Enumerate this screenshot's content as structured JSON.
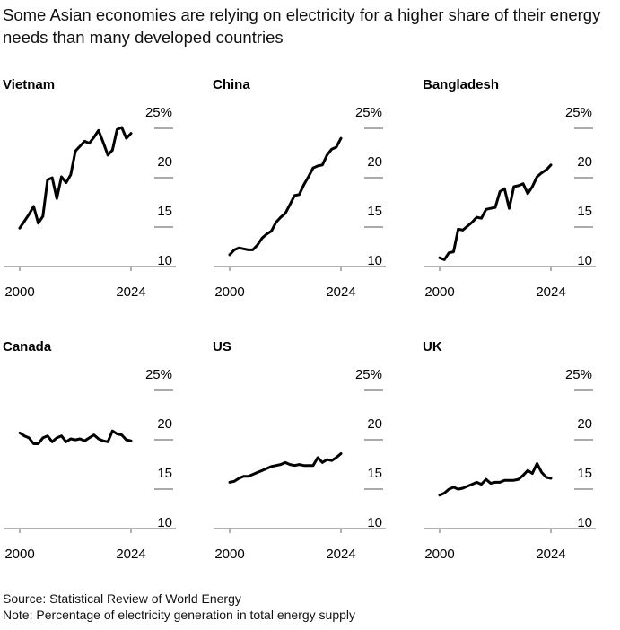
{
  "title": "Some Asian economies are relying on electricity for a higher share of their energy needs than many developed countries",
  "footer": {
    "source": "Source: Statistical Review of World Energy",
    "note": "Note: Percentage of electricity generation in total energy supply"
  },
  "chart_data": [
    {
      "type": "line",
      "title": "Vietnam",
      "ylim": [
        10,
        26
      ],
      "y_ticks": [
        10,
        15,
        20,
        25
      ],
      "y_tick_labels": [
        "10",
        "15",
        "20",
        "25%"
      ],
      "x_tick_labels": [
        "2000",
        "2024"
      ],
      "x": [
        2000,
        2001,
        2002,
        2003,
        2004,
        2005,
        2006,
        2007,
        2008,
        2009,
        2010,
        2011,
        2012,
        2013,
        2014,
        2015,
        2016,
        2017,
        2018,
        2019,
        2020,
        2021,
        2022,
        2023,
        2024
      ],
      "values": [
        13.8,
        14.5,
        15.2,
        16,
        14.3,
        15,
        18.7,
        18.9,
        16.8,
        19,
        18.4,
        19.2,
        21.6,
        22.1,
        22.6,
        22.4,
        23,
        23.7,
        22.5,
        21.2,
        21.7,
        23.8,
        24,
        22.9,
        23.4
      ]
    },
    {
      "type": "line",
      "title": "China",
      "ylim": [
        10,
        26
      ],
      "y_ticks": [
        10,
        15,
        20,
        25
      ],
      "y_tick_labels": [
        "10",
        "15",
        "20",
        "25%"
      ],
      "x_tick_labels": [
        "2000",
        "2024"
      ],
      "x": [
        2000,
        2001,
        2002,
        2003,
        2004,
        2005,
        2006,
        2007,
        2008,
        2009,
        2010,
        2011,
        2012,
        2013,
        2014,
        2015,
        2016,
        2017,
        2018,
        2019,
        2020,
        2021,
        2022,
        2023,
        2024
      ],
      "values": [
        11.1,
        11.6,
        11.8,
        11.7,
        11.6,
        11.6,
        12.1,
        12.8,
        13.2,
        13.5,
        14.4,
        14.9,
        15.3,
        16.2,
        17.1,
        17.2,
        18.2,
        19,
        19.9,
        20.1,
        20.2,
        21.2,
        21.8,
        22,
        22.9
      ]
    },
    {
      "type": "line",
      "title": "Bangladesh",
      "ylim": [
        10,
        26
      ],
      "y_ticks": [
        10,
        15,
        20,
        25
      ],
      "y_tick_labels": [
        "10",
        "15",
        "20",
        "25%"
      ],
      "x_tick_labels": [
        "2000",
        "2024"
      ],
      "x": [
        2000,
        2001,
        2002,
        2003,
        2004,
        2005,
        2006,
        2007,
        2008,
        2009,
        2010,
        2011,
        2012,
        2013,
        2014,
        2015,
        2016,
        2017,
        2018,
        2019,
        2020,
        2021,
        2022,
        2023,
        2024
      ],
      "values": [
        10.8,
        10.6,
        11.3,
        11.4,
        13.7,
        13.6,
        14,
        14.4,
        14.9,
        14.8,
        15.7,
        15.8,
        15.9,
        17.5,
        17.8,
        15.8,
        18,
        18.1,
        18.3,
        17.3,
        18,
        19,
        19.4,
        19.7,
        20.2
      ]
    },
    {
      "type": "line",
      "title": "Canada",
      "ylim": [
        10,
        26
      ],
      "y_ticks": [
        10,
        15,
        20,
        25
      ],
      "y_tick_labels": [
        "10",
        "15",
        "20",
        "25%"
      ],
      "x_tick_labels": [
        "2000",
        "2024"
      ],
      "x": [
        2000,
        2001,
        2002,
        2003,
        2004,
        2005,
        2006,
        2007,
        2008,
        2009,
        2010,
        2011,
        2012,
        2013,
        2014,
        2015,
        2016,
        2017,
        2018,
        2019,
        2020,
        2021,
        2022,
        2023,
        2024
      ],
      "values": [
        19.6,
        19.3,
        19.1,
        18.5,
        18.5,
        19.1,
        19.3,
        18.7,
        19.1,
        19.3,
        18.7,
        19,
        18.9,
        19,
        18.8,
        19.1,
        19.4,
        19,
        18.8,
        18.7,
        19.8,
        19.5,
        19.4,
        18.9,
        18.8
      ]
    },
    {
      "type": "line",
      "title": "US",
      "ylim": [
        10,
        26
      ],
      "y_ticks": [
        10,
        15,
        20,
        25
      ],
      "y_tick_labels": [
        "10",
        "15",
        "20",
        "25%"
      ],
      "x_tick_labels": [
        "2000",
        "2024"
      ],
      "x": [
        2000,
        2001,
        2002,
        2003,
        2004,
        2005,
        2006,
        2007,
        2008,
        2009,
        2010,
        2011,
        2012,
        2013,
        2014,
        2015,
        2016,
        2017,
        2018,
        2019,
        2020,
        2021,
        2022,
        2023,
        2024
      ],
      "values": [
        14.6,
        14.7,
        15,
        15.2,
        15.2,
        15.4,
        15.6,
        15.8,
        16,
        16.2,
        16.3,
        16.4,
        16.6,
        16.4,
        16.3,
        16.4,
        16.3,
        16.3,
        16.3,
        17.1,
        16.6,
        16.9,
        16.8,
        17.1,
        17.5
      ]
    },
    {
      "type": "line",
      "title": "UK",
      "ylim": [
        10,
        26
      ],
      "y_ticks": [
        10,
        15,
        20,
        25
      ],
      "y_tick_labels": [
        "10",
        "15",
        "20",
        "25%"
      ],
      "x_tick_labels": [
        "2000",
        "2024"
      ],
      "x": [
        2000,
        2001,
        2002,
        2003,
        2004,
        2005,
        2006,
        2007,
        2008,
        2009,
        2010,
        2011,
        2012,
        2013,
        2014,
        2015,
        2016,
        2017,
        2018,
        2019,
        2020,
        2021,
        2022,
        2023,
        2024
      ],
      "values": [
        13.3,
        13.5,
        13.9,
        14.1,
        13.9,
        14,
        14.2,
        14.4,
        14.6,
        14.4,
        14.9,
        14.5,
        14.6,
        14.6,
        14.8,
        14.8,
        14.8,
        14.9,
        15.3,
        15.8,
        15.5,
        16.5,
        15.6,
        15.1,
        15
      ]
    }
  ]
}
